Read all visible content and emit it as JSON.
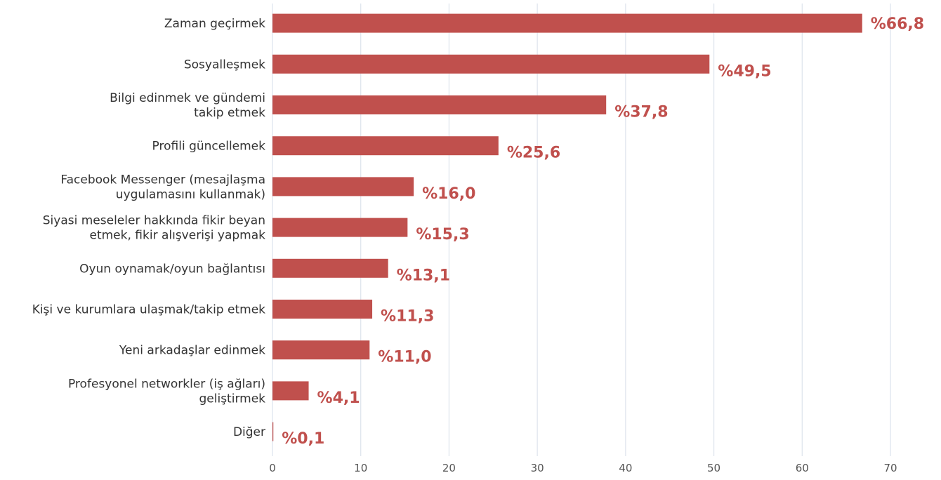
{
  "chart_data": {
    "type": "bar",
    "orientation": "horizontal",
    "categories": [
      [
        "Zaman geçirmek"
      ],
      [
        "Sosyalleşmek"
      ],
      [
        "Bilgi edinmek ve gündemi",
        "takip etmek"
      ],
      [
        "Profili güncellemek"
      ],
      [
        "Facebook Messenger (mesajlaşma",
        "uygulamasını kullanmak)"
      ],
      [
        "Siyasi meseleler hakkında fikir beyan",
        "etmek, fikir alışverişi yapmak"
      ],
      [
        "Oyun oynamak/oyun bağlantısı"
      ],
      [
        "Kişi ve kurumlara ulaşmak/takip etmek"
      ],
      [
        "Yeni arkadaşlar edinmek"
      ],
      [
        "Profesyonel networkler (iş ağları)",
        "geliştirmek"
      ],
      [
        "Diğer"
      ]
    ],
    "values": [
      66.8,
      49.5,
      37.8,
      25.6,
      16.0,
      15.3,
      13.1,
      11.3,
      11.0,
      4.1,
      0.1
    ],
    "value_labels": [
      "%66,8",
      "%49,5",
      "%37,8",
      "%25,6",
      "%16,0",
      "%15,3",
      "%13,1",
      "%11,3",
      "%11,0",
      "%4,1",
      "%0,1"
    ],
    "x_ticks": [
      "0",
      "10",
      "20",
      "30",
      "40",
      "50",
      "60",
      "70"
    ],
    "xlim": [
      0,
      70
    ],
    "grid": "vertical",
    "bar_color": "#c0504d",
    "label_color": "#c0504d",
    "grid_color": "#dde3ec"
  }
}
